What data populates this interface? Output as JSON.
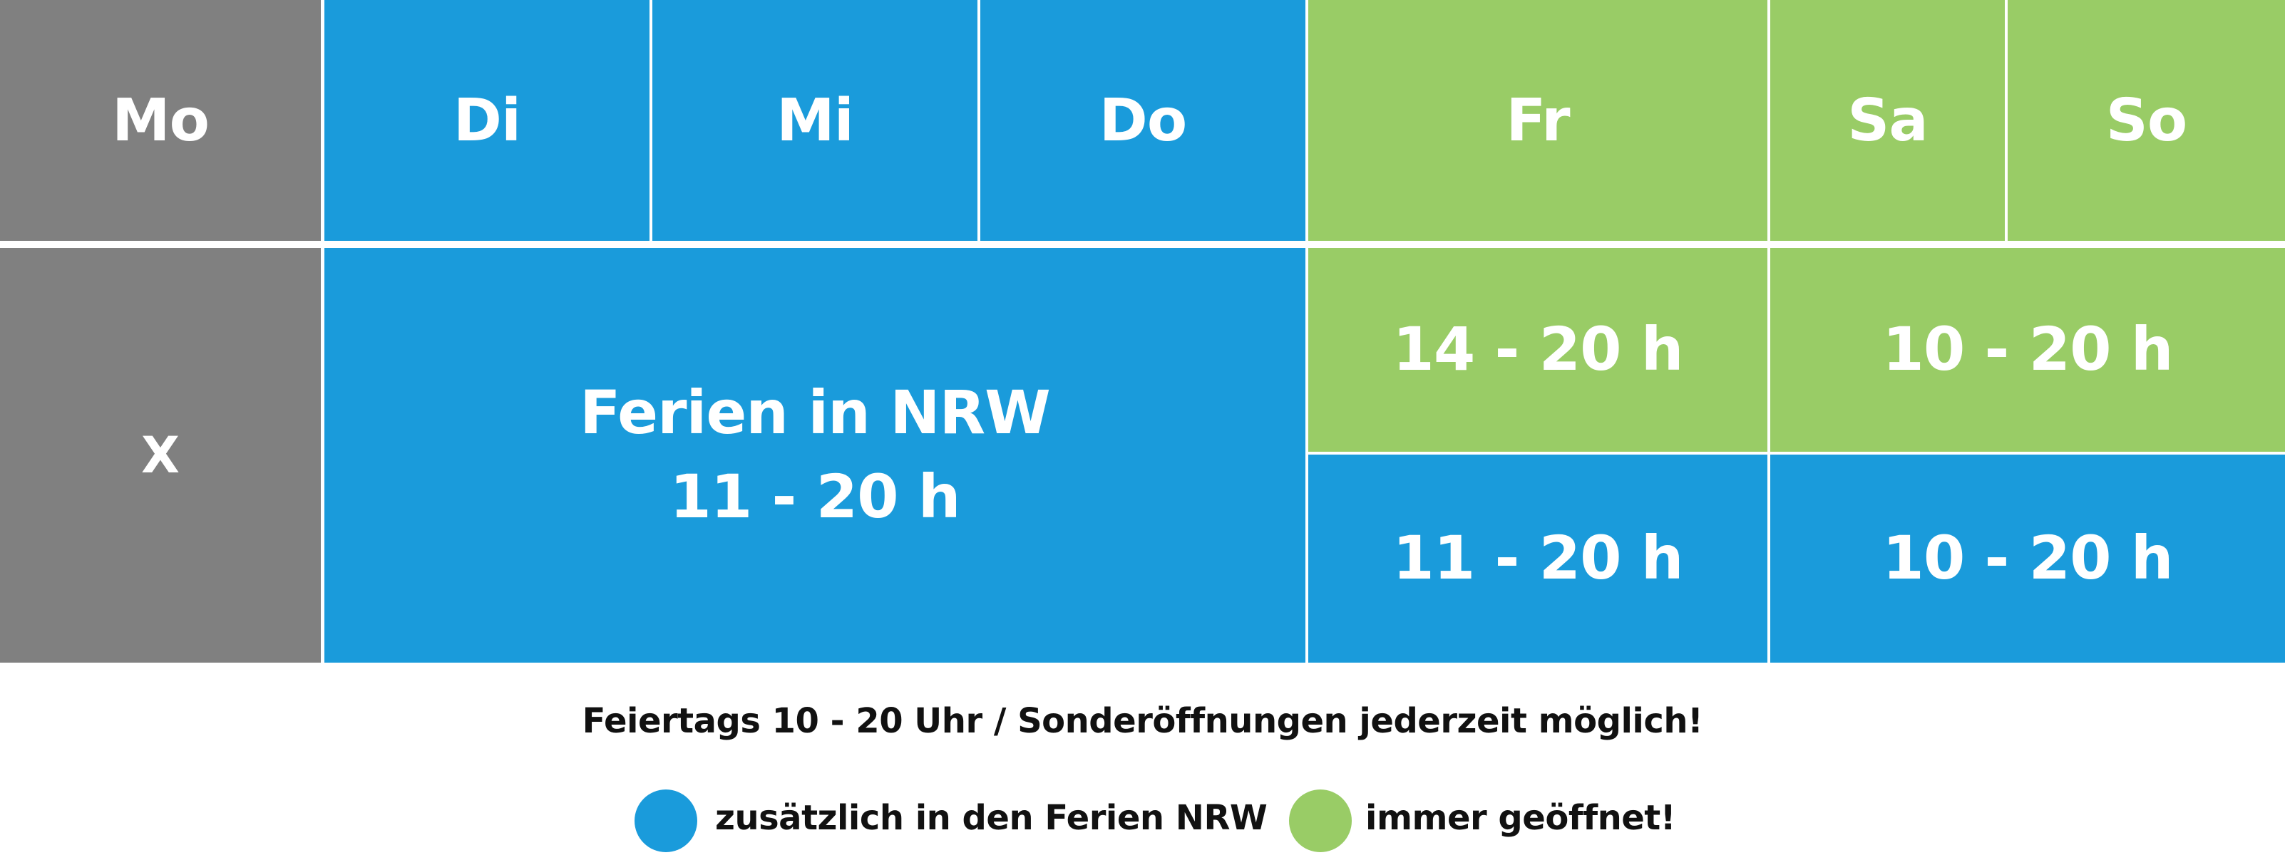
{
  "colors": {
    "closed": "#808080",
    "holidays": "#1a9bdb",
    "always_open": "#99cc66",
    "divider": "#ffffff",
    "text": "#ffffff",
    "footer_text": "#111111"
  },
  "header": {
    "days": {
      "mo": "Mo",
      "di": "Di",
      "mi": "Mi",
      "do": "Do",
      "fr": "Fr",
      "sa": "Sa",
      "so": "So"
    }
  },
  "schedule": {
    "monday": "X",
    "holidays_block": {
      "line1": "Ferien in NRW",
      "line2": "11 - 20 h"
    },
    "friday_always": "14 - 20 h",
    "weekend_always": "10 - 20 h",
    "friday_holidays": "11 - 20 h",
    "weekend_holidays": "10 - 20 h"
  },
  "footer": {
    "note": "Feiertags 10 - 20 Uhr / Sonderöffnungen jederzeit möglich!",
    "legend": [
      {
        "color": "#1a9bdb",
        "icon": "blue-circle-icon",
        "label": "zusätzlich in den Ferien NRW"
      },
      {
        "color": "#99cc66",
        "icon": "green-circle-icon",
        "label": "immer geöffnet!"
      }
    ]
  }
}
